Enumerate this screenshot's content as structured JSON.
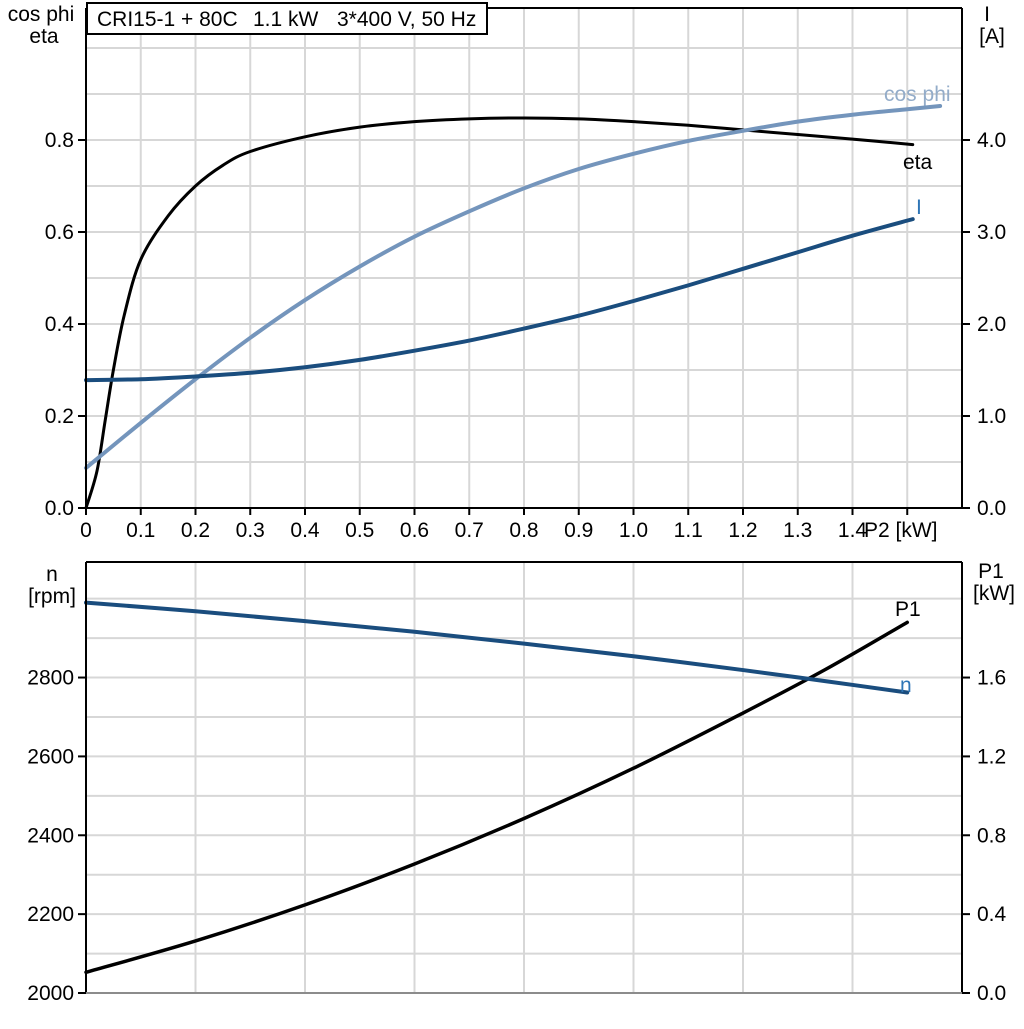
{
  "title": {
    "model": "CRI15-1 + 80C",
    "power": "1.1 kW",
    "supply": "3*400 V, 50 Hz"
  },
  "colors": {
    "gridline": "#D7D7D7",
    "axis": "#000000",
    "bottom_axis_gray": "#8C8C8C",
    "black_curve": "#000000",
    "dark_blue_curve": "#1A4D7E",
    "steel_blue_curve": "#7495BC",
    "blue_curve_label": "#2E75B6",
    "steel_blue_label": "#93ACC9",
    "title_box_bg": "#FFFFFF"
  },
  "chart_data": [
    {
      "type": "line",
      "name": "motor-performance",
      "x_axis": {
        "label": "P2 [kW]",
        "min": 0,
        "max": 1.6,
        "tick_values": [
          0,
          0.1,
          0.2,
          0.3,
          0.4,
          0.5,
          0.6,
          0.7,
          0.8,
          0.9,
          1.0,
          1.1,
          1.2,
          1.3,
          1.4,
          1.5
        ],
        "tick_labels": [
          "0",
          "0.1",
          "0.2",
          "0.3",
          "0.4",
          "0.5",
          "0.6",
          "0.7",
          "0.8",
          "0.9",
          "1.0",
          "1.1",
          "1.2",
          "1.3",
          "1.4",
          ""
        ],
        "grid_step": 0.1
      },
      "y_axis_left": {
        "title_lines": [
          "cos phi",
          "eta"
        ],
        "min": 0,
        "max": 1.087,
        "tick_values": [
          0,
          0.2,
          0.4,
          0.6,
          0.8
        ],
        "tick_labels": [
          "0.0",
          "0.2",
          "0.4",
          "0.6",
          "0.8"
        ],
        "grid_step": 0.1
      },
      "y_axis_right": {
        "title_lines": [
          "I",
          "[A]"
        ],
        "min": 0,
        "max": 5.435,
        "tick_values": [
          0,
          1,
          2,
          3,
          4
        ],
        "tick_labels": [
          "0.0",
          "1.0",
          "2.0",
          "3.0",
          "4.0"
        ]
      },
      "grid": true,
      "legend_position": "inline-labels",
      "series": [
        {
          "name": "eta",
          "axis": "left",
          "color": "#000000",
          "label_color": "#000000",
          "width": 3,
          "points": [
            [
              0,
              0
            ],
            [
              0.02,
              0.08
            ],
            [
              0.035,
              0.19
            ],
            [
              0.05,
              0.3
            ],
            [
              0.07,
              0.42
            ],
            [
              0.1,
              0.54
            ],
            [
              0.15,
              0.635
            ],
            [
              0.2,
              0.7
            ],
            [
              0.25,
              0.745
            ],
            [
              0.3,
              0.775
            ],
            [
              0.4,
              0.807
            ],
            [
              0.5,
              0.828
            ],
            [
              0.6,
              0.84
            ],
            [
              0.7,
              0.846
            ],
            [
              0.8,
              0.848
            ],
            [
              0.9,
              0.846
            ],
            [
              1.0,
              0.84
            ],
            [
              1.1,
              0.832
            ],
            [
              1.2,
              0.822
            ],
            [
              1.3,
              0.812
            ],
            [
              1.4,
              0.802
            ],
            [
              1.51,
              0.79
            ]
          ]
        },
        {
          "name": "cos phi",
          "axis": "left",
          "color": "#7495BC",
          "label_color": "#93ACC9",
          "width": 4,
          "points": [
            [
              0,
              0.087
            ],
            [
              0.1,
              0.185
            ],
            [
              0.2,
              0.28
            ],
            [
              0.3,
              0.37
            ],
            [
              0.4,
              0.452
            ],
            [
              0.5,
              0.525
            ],
            [
              0.6,
              0.59
            ],
            [
              0.7,
              0.645
            ],
            [
              0.8,
              0.695
            ],
            [
              0.9,
              0.737
            ],
            [
              1.0,
              0.77
            ],
            [
              1.1,
              0.798
            ],
            [
              1.2,
              0.82
            ],
            [
              1.3,
              0.84
            ],
            [
              1.4,
              0.855
            ],
            [
              1.5,
              0.867
            ],
            [
              1.56,
              0.874
            ]
          ]
        },
        {
          "name": "I",
          "axis": "right",
          "color": "#1A4D7E",
          "label_color": "#2E75B6",
          "width": 4,
          "points": [
            [
              0,
              1.39
            ],
            [
              0.1,
              1.4
            ],
            [
              0.2,
              1.43
            ],
            [
              0.3,
              1.47
            ],
            [
              0.4,
              1.53
            ],
            [
              0.5,
              1.61
            ],
            [
              0.6,
              1.71
            ],
            [
              0.7,
              1.82
            ],
            [
              0.8,
              1.95
            ],
            [
              0.9,
              2.09
            ],
            [
              1.0,
              2.25
            ],
            [
              1.1,
              2.42
            ],
            [
              1.2,
              2.6
            ],
            [
              1.3,
              2.78
            ],
            [
              1.4,
              2.96
            ],
            [
              1.51,
              3.14
            ]
          ]
        }
      ]
    },
    {
      "type": "line",
      "name": "speed-and-input-power",
      "x_axis": {
        "label": "",
        "min": 0,
        "max": 1.6,
        "tick_values": [],
        "tick_labels": [],
        "grid_step": 0.2
      },
      "y_axis_left": {
        "title_lines": [
          "n",
          "[rpm]"
        ],
        "min": 2000,
        "max": 3093,
        "tick_values": [
          2000,
          2200,
          2400,
          2600,
          2800
        ],
        "tick_labels": [
          "2000",
          "2200",
          "2400",
          "2600",
          "2800"
        ],
        "grid_step": 100
      },
      "y_axis_right": {
        "title_lines": [
          "P1",
          "[kW]"
        ],
        "min": 0,
        "max": 2.186,
        "tick_values": [
          0,
          0.4,
          0.8,
          1.2,
          1.6
        ],
        "tick_labels": [
          "0.0",
          "0.4",
          "0.8",
          "1.2",
          "1.6"
        ]
      },
      "grid": true,
      "legend_position": "inline-labels",
      "series": [
        {
          "name": "P1",
          "axis": "right",
          "color": "#000000",
          "label_color": "#000000",
          "width": 3.5,
          "points": [
            [
              0,
              0.105
            ],
            [
              0.2,
              0.264
            ],
            [
              0.4,
              0.447
            ],
            [
              0.6,
              0.654
            ],
            [
              0.8,
              0.885
            ],
            [
              1.0,
              1.14
            ],
            [
              1.2,
              1.42
            ],
            [
              1.35,
              1.64
            ],
            [
              1.5,
              1.88
            ]
          ]
        },
        {
          "name": "n",
          "axis": "left",
          "color": "#1A4D7E",
          "label_color": "#2E75B6",
          "width": 4,
          "points": [
            [
              0,
              2990
            ],
            [
              0.2,
              2968
            ],
            [
              0.4,
              2943
            ],
            [
              0.6,
              2916
            ],
            [
              0.8,
              2886
            ],
            [
              1.0,
              2854
            ],
            [
              1.2,
              2819
            ],
            [
              1.35,
              2791
            ],
            [
              1.5,
              2762
            ]
          ]
        }
      ]
    }
  ]
}
